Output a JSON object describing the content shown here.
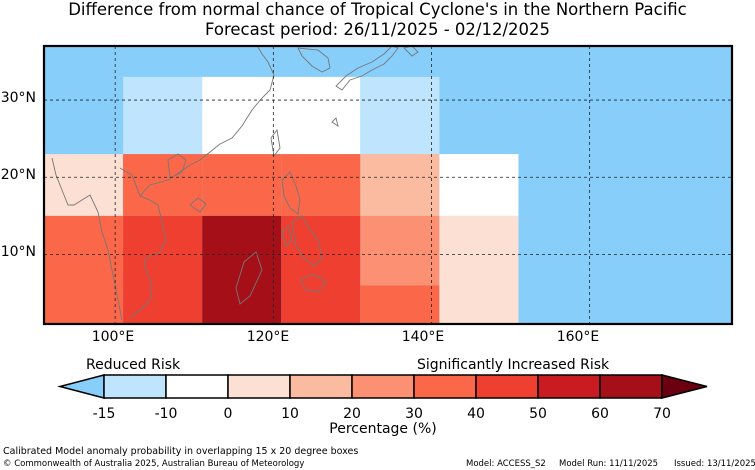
{
  "title_line1": "Difference from normal chance of Tropical Cyclone's in the Northern Pacific",
  "title_line2": "Forecast period: 26/11/2025 - 02/12/2025",
  "lat_labels": [
    "30°N",
    "20°N",
    "10°N"
  ],
  "lon_labels": [
    "100°E",
    "120°E",
    "140°E",
    "160°E"
  ],
  "map_extent": {
    "lon_min": 91,
    "lon_max": 178,
    "lat_min": 1,
    "lat_max": 37
  },
  "grid_cells": [
    {
      "lon": [
        101,
        111
      ],
      "lat": [
        23,
        33
      ],
      "change": -12
    },
    {
      "lon": [
        111,
        131
      ],
      "lat": [
        23,
        33
      ],
      "change": -5
    },
    {
      "lon": [
        131,
        141
      ],
      "lat": [
        23,
        33
      ],
      "change": -12
    },
    {
      "lon": [
        91,
        101
      ],
      "lat": [
        15,
        23
      ],
      "change": 5
    },
    {
      "lon": [
        101,
        111
      ],
      "lat": [
        15,
        23
      ],
      "change": 35
    },
    {
      "lon": [
        111,
        121
      ],
      "lat": [
        15,
        23
      ],
      "change": 38
    },
    {
      "lon": [
        121,
        131
      ],
      "lat": [
        15,
        23
      ],
      "change": 32
    },
    {
      "lon": [
        131,
        141
      ],
      "lat": [
        15,
        23
      ],
      "change": 15
    },
    {
      "lon": [
        141,
        151
      ],
      "lat": [
        15,
        23
      ],
      "change": -5
    },
    {
      "lon": [
        91,
        101
      ],
      "lat": [
        1,
        15
      ],
      "change": 30
    },
    {
      "lon": [
        101,
        111
      ],
      "lat": [
        1,
        15
      ],
      "change": 45
    },
    {
      "lon": [
        111,
        121
      ],
      "lat": [
        1,
        15
      ],
      "change": 65
    },
    {
      "lon": [
        121,
        131
      ],
      "lat": [
        1,
        15
      ],
      "change": 45
    },
    {
      "lon": [
        131,
        141
      ],
      "lat": [
        6,
        15
      ],
      "change": 28
    },
    {
      "lon": [
        131,
        141
      ],
      "lat": [
        1,
        6
      ],
      "change": 35
    },
    {
      "lon": [
        141,
        151
      ],
      "lat": [
        1,
        15
      ],
      "change": 5
    }
  ],
  "colorbar": {
    "reduced_label": "Reduced Risk",
    "increased_label": "Significantly Increased Risk",
    "ticks": [
      "-15",
      "-10",
      "0",
      "10",
      "20",
      "30",
      "40",
      "50",
      "60",
      "70"
    ],
    "under_color": "#87cefa",
    "over_color": "#6b0010",
    "colors": [
      "#bfe4fd",
      "#ffffff",
      "#fde0d4",
      "#fbbba0",
      "#fb9172",
      "#fb6749",
      "#ee3f30",
      "#c91c22",
      "#a50f17"
    ],
    "label": "Percentage (%)"
  },
  "land_color": "#87cefa",
  "footer": {
    "line1": "Calibrated Model anomaly probability in overlapping 15 x 20 degree boxes",
    "line2": "© Commonwealth of Australia 2025, Australian Bureau of Meteorology",
    "model": "Model: ACCESS_S2",
    "run": "Model Run: 11/11/2025",
    "issued": "Issued: 13/11/2025"
  }
}
